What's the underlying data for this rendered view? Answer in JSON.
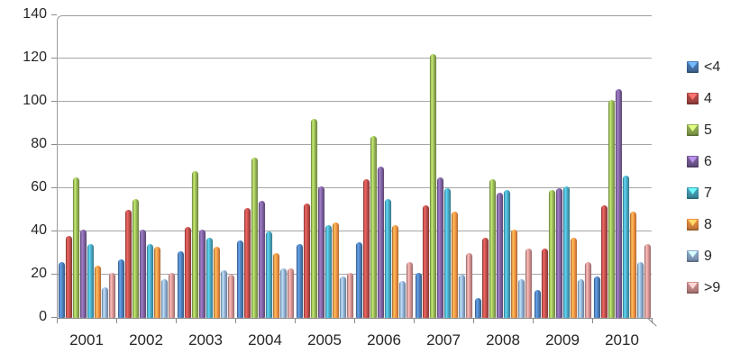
{
  "chart_data": {
    "type": "bar",
    "title": "",
    "xlabel": "",
    "ylabel": "",
    "categories": [
      "2001",
      "2002",
      "2003",
      "2004",
      "2005",
      "2006",
      "2007",
      "2008",
      "2009",
      "2010"
    ],
    "series": [
      {
        "name": "<4",
        "color": "#4F81BD",
        "values": [
          26,
          27,
          31,
          36,
          34,
          35,
          21,
          9,
          13,
          19
        ]
      },
      {
        "name": "4",
        "color": "#C0504D",
        "values": [
          38,
          50,
          42,
          51,
          53,
          64,
          52,
          37,
          32,
          52
        ]
      },
      {
        "name": "5",
        "color": "#9BBB59",
        "values": [
          65,
          55,
          68,
          74,
          92,
          84,
          122,
          64,
          59,
          101
        ]
      },
      {
        "name": "6",
        "color": "#8064A2",
        "values": [
          41,
          41,
          41,
          54,
          61,
          70,
          65,
          58,
          60,
          106
        ]
      },
      {
        "name": "7",
        "color": "#4BACC6",
        "values": [
          34,
          34,
          37,
          40,
          43,
          55,
          60,
          59,
          61,
          66
        ]
      },
      {
        "name": "8",
        "color": "#F79646",
        "values": [
          24,
          33,
          33,
          30,
          44,
          43,
          49,
          41,
          37,
          49
        ]
      },
      {
        "name": "9",
        "color": "#95B3D7",
        "values": [
          14,
          18,
          22,
          23,
          19,
          17,
          20,
          18,
          18,
          26
        ]
      },
      {
        "name": ">9",
        "color": "#D99694",
        "values": [
          21,
          21,
          20,
          23,
          21,
          26,
          30,
          32,
          26,
          34
        ]
      }
    ],
    "ylim": [
      0,
      140
    ],
    "yticks": [
      0,
      20,
      40,
      60,
      80,
      100,
      120,
      140
    ],
    "grid": "horizontal-on",
    "legend_position": "right",
    "legend_labels": [
      "<4",
      "4",
      "5",
      "6",
      "7",
      "8",
      "9",
      ">9"
    ]
  },
  "style_colors": {
    "gridline": "#A6A6A6",
    "axis": "#8A8A8A",
    "text": "#262626",
    "background": "#FFFFFF"
  }
}
